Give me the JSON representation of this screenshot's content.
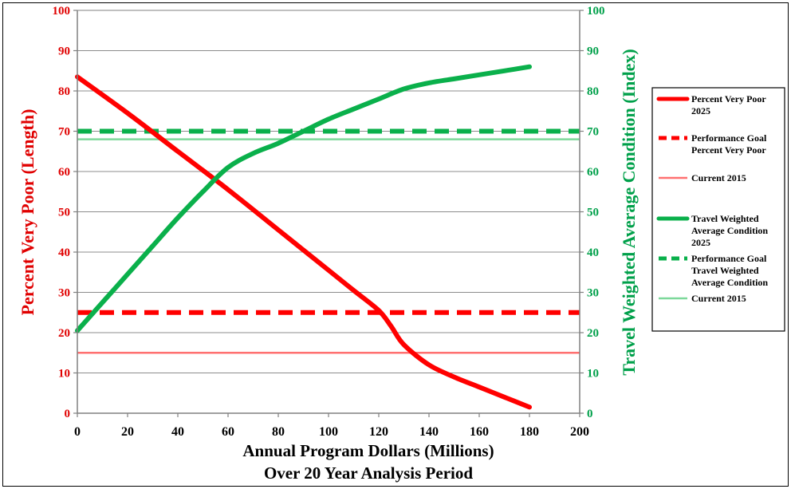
{
  "chart_data": {
    "type": "line",
    "xlabel": [
      "Annual Program Dollars (Millions)",
      "Over 20 Year Analysis Period"
    ],
    "ylabel_left": "Percent Very Poor (Length)",
    "ylabel_right": "Travel Weighted Average Condition (Index)",
    "xlim": [
      0,
      200
    ],
    "ylim_left": [
      0,
      100
    ],
    "ylim_right": [
      0,
      100
    ],
    "x_ticks": [
      "0",
      "20",
      "40",
      "60",
      "80",
      "100",
      "120",
      "140",
      "160",
      "180",
      "200"
    ],
    "y_ticks_left": [
      "0",
      "10",
      "20",
      "30",
      "40",
      "50",
      "60",
      "70",
      "80",
      "90",
      "100"
    ],
    "y_ticks_right": [
      "0",
      "10",
      "20",
      "30",
      "40",
      "50",
      "60",
      "70",
      "80",
      "90",
      "100"
    ],
    "grid": "horizontal",
    "legend_position": "right",
    "series": [
      {
        "name": "Percent Very Poor 2025",
        "axis": "left",
        "color": "#ff0000",
        "style": "solid-thick",
        "x": [
          0,
          20,
          40,
          60,
          80,
          100,
          110,
          120,
          125,
          130,
          140,
          150,
          160,
          170,
          180
        ],
        "y": [
          83.5,
          74.5,
          65,
          55.5,
          45.5,
          35.5,
          30.5,
          25.5,
          21.5,
          17,
          12,
          9,
          6.5,
          4,
          1.5
        ]
      },
      {
        "name": "Performance Goal Percent Very Poor",
        "axis": "left",
        "color": "#ff0000",
        "style": "dashed",
        "x": [
          0,
          200
        ],
        "y": [
          25,
          25
        ]
      },
      {
        "name": "Current 2015",
        "axis": "left",
        "color": "#ff7070",
        "style": "solid-thin",
        "x": [
          0,
          200
        ],
        "y": [
          15,
          15
        ]
      },
      {
        "name": "Travel Weighted Average Condition 2025",
        "axis": "right",
        "color": "#0ab04b",
        "style": "solid-thick",
        "x": [
          0,
          10,
          20,
          30,
          40,
          50,
          60,
          70,
          80,
          90,
          100,
          110,
          120,
          130,
          140,
          150,
          160,
          170,
          180
        ],
        "y": [
          20.5,
          27.5,
          34.5,
          41.5,
          48.5,
          55,
          61,
          64.5,
          67,
          70,
          73,
          75.5,
          78,
          80.5,
          82,
          83,
          84,
          85,
          86
        ]
      },
      {
        "name": "Performance Goal Travel Weighted Average Condition",
        "axis": "right",
        "color": "#0ab04b",
        "style": "dashed",
        "x": [
          0,
          200
        ],
        "y": [
          70,
          70
        ]
      },
      {
        "name": "Current 2015",
        "axis": "right",
        "color": "#7dd89a",
        "style": "solid-thin",
        "x": [
          0,
          200
        ],
        "y": [
          68,
          68
        ]
      }
    ],
    "legend": [
      {
        "label": [
          "Percent Very Poor",
          "2025"
        ],
        "color": "#ff0000",
        "style": "solid-thick"
      },
      {
        "label": [
          "Performance Goal",
          "Percent Very Poor"
        ],
        "color": "#ff0000",
        "style": "dashed"
      },
      {
        "label": [
          "Current 2015"
        ],
        "color": "#ff7070",
        "style": "solid-thin"
      },
      {
        "label": [
          "Travel Weighted",
          "Average Condition",
          "2025"
        ],
        "color": "#0ab04b",
        "style": "solid-thick"
      },
      {
        "label": [
          "Performance Goal",
          "Travel Weighted",
          "Average Condition"
        ],
        "color": "#0ab04b",
        "style": "dashed"
      },
      {
        "label": [
          "Current 2015"
        ],
        "color": "#7dd89a",
        "style": "solid-thin"
      }
    ]
  }
}
